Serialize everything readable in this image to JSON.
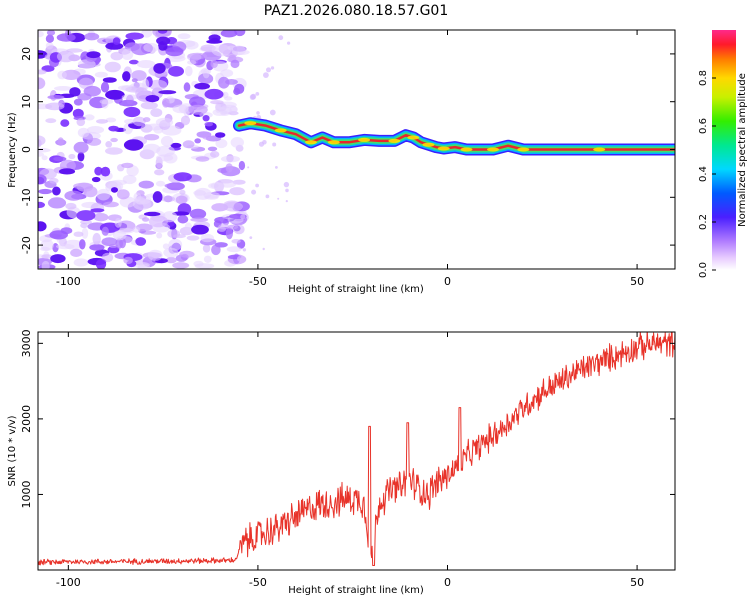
{
  "title": "PAZ1.2026.080.18.57.G01",
  "chart_data": [
    {
      "type": "heatmap",
      "title": "PAZ1.2026.080.18.57.G01",
      "xlabel": "Height of straight line (km)",
      "ylabel": "Frequency (Hz)",
      "xlim": [
        -108,
        60
      ],
      "ylim": [
        -25,
        25
      ],
      "xticks": [
        -100,
        -50,
        0,
        50
      ],
      "yticks": [
        -20,
        -10,
        0,
        10,
        20
      ],
      "colorbar": {
        "label": "Normalized spectral amplitude",
        "range": [
          0,
          1
        ],
        "ticks": [
          "0.0",
          "0.2",
          "0.4",
          "0.6",
          "0.8"
        ],
        "tick_values": [
          0,
          0.2,
          0.4,
          0.6,
          0.8
        ]
      },
      "noise_region_x": [
        -108,
        -55
      ],
      "signal_track": {
        "x": [
          -55,
          -52,
          -48,
          -44,
          -40,
          -36,
          -33,
          -30,
          -26,
          -22,
          -18,
          -14,
          -11,
          -9,
          -7,
          -5,
          -3,
          -1,
          2,
          5,
          8,
          12,
          16,
          20,
          30,
          40,
          60
        ],
        "freq": [
          5,
          5.5,
          5,
          4,
          3.2,
          1.5,
          2.5,
          1.5,
          1.5,
          2,
          1.8,
          1.8,
          3,
          2.5,
          1.5,
          1,
          0.5,
          0.2,
          0.5,
          0,
          0,
          0,
          0.8,
          0,
          0,
          0,
          0
        ]
      }
    },
    {
      "type": "line",
      "xlabel": "Height of straight line (km)",
      "ylabel": "SNR (10 * v/v)",
      "xlim": [
        -108,
        60
      ],
      "ylim": [
        0,
        3150
      ],
      "xticks": [
        -100,
        -50,
        0,
        50
      ],
      "yticks": [
        1000,
        2000,
        3000
      ],
      "series": [
        {
          "name": "SNR",
          "color": "#e8332a",
          "x": [
            -108,
            -100,
            -90,
            -80,
            -70,
            -60,
            -56,
            -54,
            -50,
            -45,
            -40,
            -35,
            -30,
            -25,
            -22,
            -20,
            -18,
            -15,
            -12,
            -10,
            -8,
            -5,
            -3,
            0,
            5,
            10,
            15,
            20,
            25,
            30,
            35,
            40,
            45,
            50,
            55,
            60
          ],
          "y": [
            100,
            110,
            110,
            115,
            120,
            125,
            130,
            350,
            450,
            550,
            700,
            850,
            900,
            950,
            900,
            150,
            900,
            1050,
            1100,
            1200,
            1100,
            1000,
            1150,
            1250,
            1500,
            1700,
            1900,
            2150,
            2350,
            2500,
            2650,
            2750,
            2850,
            2950,
            3000,
            3000
          ]
        }
      ]
    }
  ]
}
